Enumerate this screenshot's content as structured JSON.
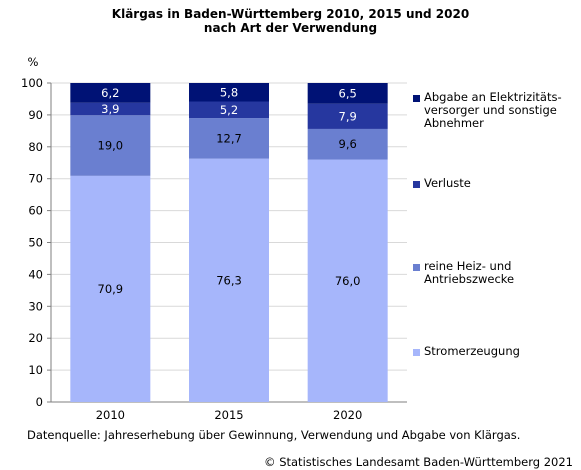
{
  "chart_data": {
    "type": "bar",
    "stacked": true,
    "title": "Klärgas in Baden-Württemberg  2010, 2015 und 2020",
    "subtitle": "nach Art der Verwendung",
    "ylabel": "%",
    "ylim": [
      0,
      100
    ],
    "yticks": [
      0,
      10,
      20,
      30,
      40,
      50,
      60,
      70,
      80,
      90,
      100
    ],
    "grid": true,
    "legend_position": "right",
    "categories": [
      "2010",
      "2015",
      "2020"
    ],
    "series": [
      {
        "name": "Stromerzeugung",
        "color": "#a6b6fb",
        "values": [
          70.9,
          76.3,
          76.0
        ],
        "labels": [
          "70,9",
          "76,3",
          "76,0"
        ]
      },
      {
        "name": "reine Heiz- und\nAntriebszwecke",
        "color": "#6a7fd0",
        "values": [
          19.0,
          12.7,
          9.6
        ],
        "labels": [
          "19,0",
          "12,7",
          "9,6"
        ]
      },
      {
        "name": "Verluste",
        "color": "#26379f",
        "values": [
          3.9,
          5.2,
          7.9
        ],
        "labels": [
          "3,9",
          "5,2",
          "7,9"
        ]
      },
      {
        "name": "Abgabe an Elektrizitäts-\nversorger und sonstige\nAbnehmer",
        "color": "#001275",
        "values": [
          6.2,
          5.8,
          6.5
        ],
        "labels": [
          "6,2",
          "5,8",
          "6,5"
        ]
      }
    ]
  },
  "footer": {
    "source": "Datenquelle: Jahreserhebung über Gewinnung, Verwendung und Abgabe von Klärgas.",
    "copyright": "© Statistisches Landesamt Baden-Württemberg 2021"
  }
}
